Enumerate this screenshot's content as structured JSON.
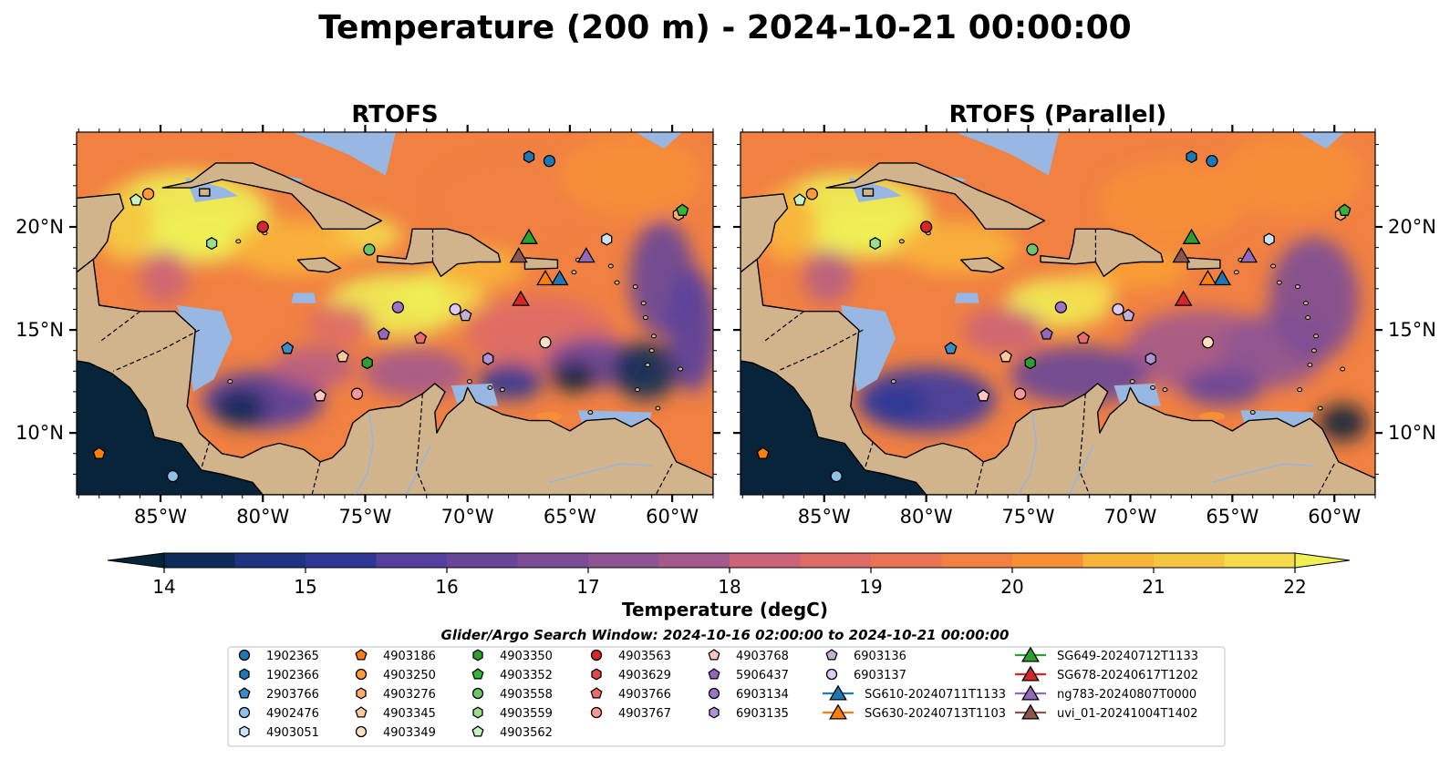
{
  "figure": {
    "title": "Temperature (200 m) - 2024-10-21 00:00:00"
  },
  "panels": [
    {
      "title": "RTOFS"
    },
    {
      "title": "RTOFS (Parallel)"
    }
  ],
  "axes": {
    "lon_labels": [
      "85°W",
      "80°W",
      "75°W",
      "70°W",
      "65°W",
      "60°W"
    ],
    "lat_labels": [
      "20°N",
      "15°N",
      "10°N"
    ]
  },
  "colorbar": {
    "label": "Temperature (degC)",
    "ticks": [
      "14",
      "15",
      "16",
      "17",
      "18",
      "19",
      "20",
      "21",
      "22"
    ],
    "colors": [
      "#08243a",
      "#0d2b57",
      "#1f3480",
      "#2f3796",
      "#3f3aa0",
      "#553f9e",
      "#674599",
      "#7b4d96",
      "#8f5592",
      "#a3598c",
      "#b85e83",
      "#cb6478",
      "#dc6b68",
      "#e97455",
      "#f18142",
      "#f68f36",
      "#f9a035",
      "#f8b33a",
      "#f5c542",
      "#f4da4c",
      "#eef055"
    ]
  },
  "legend": {
    "title": "Glider/Argo Search Window: 2024-10-16 02:00:00 to 2024-10-21 00:00:00",
    "items": [
      {
        "label": "1902365",
        "marker": "circle",
        "color": "#1f77b4"
      },
      {
        "label": "1902366",
        "marker": "hexagon",
        "color": "#1f77b4"
      },
      {
        "label": "2903766",
        "marker": "pentagon",
        "color": "#3a8cc8"
      },
      {
        "label": "4902476",
        "marker": "circle",
        "color": "#8ec1e8"
      },
      {
        "label": "4903051",
        "marker": "hexagon",
        "color": "#c9e3f7"
      },
      {
        "label": "4903186",
        "marker": "pentagon",
        "color": "#ff7f0e"
      },
      {
        "label": "4903250",
        "marker": "circle",
        "color": "#ff9a3c"
      },
      {
        "label": "4903276",
        "marker": "hexagon",
        "color": "#ffad66"
      },
      {
        "label": "4903345",
        "marker": "pentagon",
        "color": "#ffc999"
      },
      {
        "label": "4903349",
        "marker": "circle",
        "color": "#ffe0c2"
      },
      {
        "label": "4903350",
        "marker": "hexagon",
        "color": "#2ca02c"
      },
      {
        "label": "4903352",
        "marker": "pentagon",
        "color": "#37b337"
      },
      {
        "label": "4903558",
        "marker": "circle",
        "color": "#6cc56c"
      },
      {
        "label": "4903559",
        "marker": "hexagon",
        "color": "#98df8a"
      },
      {
        "label": "4903562",
        "marker": "pentagon",
        "color": "#c9f2c1"
      },
      {
        "label": "4903563",
        "marker": "circle",
        "color": "#d62728"
      },
      {
        "label": "4903629",
        "marker": "hexagon",
        "color": "#e0474a"
      },
      {
        "label": "4903766",
        "marker": "pentagon",
        "color": "#ec6a6c"
      },
      {
        "label": "4903767",
        "marker": "circle",
        "color": "#ff9896"
      },
      {
        "label": "4903768",
        "marker": "pentagon",
        "color": "#ffc6c4"
      },
      {
        "label": "5906437",
        "marker": "pentagon",
        "color": "#9467bd"
      },
      {
        "label": "6903134",
        "marker": "circle",
        "color": "#9c74c6"
      },
      {
        "label": "6903135",
        "marker": "hexagon",
        "color": "#b093d6"
      },
      {
        "label": "6903136",
        "marker": "pentagon",
        "color": "#c5b0d5"
      },
      {
        "label": "6903137",
        "marker": "circle",
        "color": "#dccaf0"
      },
      {
        "label": "SG610-20240711T1133",
        "marker": "triangle",
        "color": "#1f77b4"
      },
      {
        "label": "SG630-20240713T1103",
        "marker": "triangle",
        "color": "#ff7f0e"
      },
      {
        "label": "SG649-20240712T1133",
        "marker": "triangle",
        "color": "#2ca02c"
      },
      {
        "label": "SG678-20240617T1202",
        "marker": "triangle",
        "color": "#d62728"
      },
      {
        "label": "ng783-20240807T0000",
        "marker": "triangle",
        "color": "#9467bd"
      },
      {
        "label": "uvi_01-20241004T1402",
        "marker": "triangle",
        "color": "#8c564b"
      }
    ]
  },
  "observations": [
    {
      "id": "1902365",
      "lon": -66.0,
      "lat": 23.2
    },
    {
      "id": "1902366",
      "lon": -67.0,
      "lat": 23.4
    },
    {
      "id": "2903766",
      "lon": -78.8,
      "lat": 14.1
    },
    {
      "id": "4902476",
      "lon": -84.4,
      "lat": 7.9
    },
    {
      "id": "4903051",
      "lon": -63.2,
      "lat": 19.4
    },
    {
      "id": "4903186",
      "lon": -88.0,
      "lat": 9.0
    },
    {
      "id": "4903250",
      "lon": -85.6,
      "lat": 21.6
    },
    {
      "id": "4903276",
      "lon": -59.7,
      "lat": 20.6
    },
    {
      "id": "4903345",
      "lon": -76.1,
      "lat": 13.7
    },
    {
      "id": "4903349",
      "lon": -66.2,
      "lat": 14.4
    },
    {
      "id": "4903350",
      "lon": -74.9,
      "lat": 13.4
    },
    {
      "id": "4903352",
      "lon": -59.5,
      "lat": 20.8
    },
    {
      "id": "4903558",
      "lon": -74.8,
      "lat": 18.9
    },
    {
      "id": "4903559",
      "lon": -82.5,
      "lat": 19.2
    },
    {
      "id": "4903562",
      "lon": -86.2,
      "lat": 21.3
    },
    {
      "id": "4903563",
      "lon": -80.0,
      "lat": 20.0
    },
    {
      "id": "4903629",
      "lon": -69.0,
      "lat": 13.6
    },
    {
      "id": "4903766",
      "lon": -72.3,
      "lat": 14.6
    },
    {
      "id": "4903767",
      "lon": -75.4,
      "lat": 11.9
    },
    {
      "id": "4903768",
      "lon": -77.2,
      "lat": 11.8
    },
    {
      "id": "5906437",
      "lon": -74.1,
      "lat": 14.8
    },
    {
      "id": "6903134",
      "lon": -73.4,
      "lat": 16.1
    },
    {
      "id": "6903135",
      "lon": -69.0,
      "lat": 13.6
    },
    {
      "id": "6903136",
      "lon": -70.1,
      "lat": 15.7
    },
    {
      "id": "6903137",
      "lon": -70.6,
      "lat": 16.0
    },
    {
      "id": "SG610-20240711T1133",
      "lon": -65.5,
      "lat": 17.5
    },
    {
      "id": "SG630-20240713T1103",
      "lon": -66.2,
      "lat": 17.5
    },
    {
      "id": "SG649-20240712T1133",
      "lon": -67.0,
      "lat": 19.5
    },
    {
      "id": "SG678-20240617T1202",
      "lon": -67.4,
      "lat": 16.5
    },
    {
      "id": "ng783-20240807T0000",
      "lon": -64.2,
      "lat": 18.6
    },
    {
      "id": "uvi_01-20241004T1402",
      "lon": -67.5,
      "lat": 18.6
    }
  ]
}
